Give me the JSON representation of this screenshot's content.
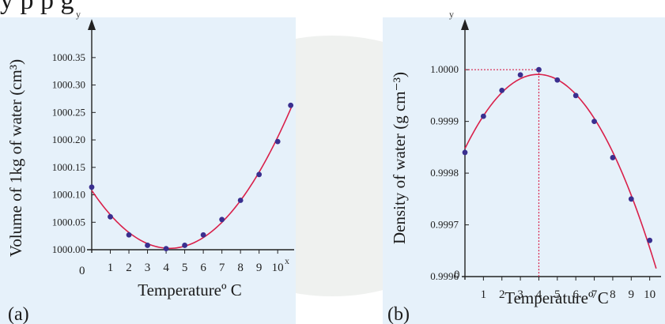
{
  "header_text": "y      p      p         g",
  "chart_data": [
    {
      "type": "line",
      "panel": "(a)",
      "xlabel": "Temperatureº C",
      "ylabel": "Volume of 1kg of water (cm³)",
      "x_axis_letter": "x",
      "y_axis_letter": "y",
      "origin_label": "0",
      "xlim": [
        0,
        10.8
      ],
      "ylim": [
        1000.0,
        1000.38
      ],
      "xticks": [
        1,
        2,
        3,
        4,
        5,
        6,
        7,
        8,
        9,
        10
      ],
      "yticks": [
        "1000.00",
        "1000.05",
        "1000.10",
        "1000.15",
        "1000.20",
        "1000.25",
        "1000.30",
        "1000.35"
      ],
      "ytick_values": [
        1000.0,
        1000.05,
        1000.1,
        1000.15,
        1000.2,
        1000.25,
        1000.3,
        1000.35
      ],
      "points": {
        "x": [
          0,
          1,
          2,
          3,
          4,
          5,
          6,
          7,
          8,
          9,
          10,
          10.7
        ],
        "y": [
          1000.114,
          1000.06,
          1000.027,
          1000.008,
          1000.002,
          1000.008,
          1000.027,
          1000.055,
          1000.09,
          1000.137,
          1000.197,
          1000.263
        ]
      },
      "curve_color": "#d9204a",
      "point_color": "#3a2f8f",
      "background": "#e6f1fa"
    },
    {
      "type": "line",
      "panel": "(b)",
      "xlabel": "Temperatureº C",
      "ylabel": "Density of water (g cm⁻³)",
      "y_axis_letter": "y",
      "origin_label": "0",
      "xlim": [
        0,
        10.4
      ],
      "ylim": [
        0.9996,
        1.00004
      ],
      "xticks": [
        1,
        2,
        3,
        4,
        5,
        6,
        7,
        8,
        9,
        10
      ],
      "yticks": [
        "0.9996",
        "0.9997",
        "0.9998",
        "0.9999",
        "1.0000"
      ],
      "ytick_values": [
        0.9996,
        0.9997,
        0.9998,
        0.9999,
        1.0
      ],
      "points": {
        "x": [
          0,
          1,
          2,
          3,
          4,
          5,
          6,
          7,
          8,
          9,
          10
        ],
        "y": [
          0.99984,
          0.99991,
          0.99996,
          0.99999,
          1.0,
          0.99998,
          0.99995,
          0.9999,
          0.99983,
          0.99975,
          0.99967
        ]
      },
      "max_marker": {
        "x": 4,
        "y": 1.0
      },
      "curve_color": "#d9204a",
      "point_color": "#3a2f8f",
      "background": "#e6f1fa"
    }
  ]
}
